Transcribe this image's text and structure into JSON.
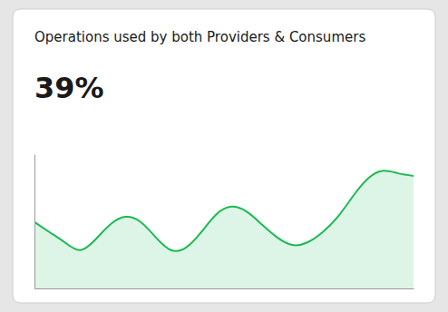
{
  "chart_data": {
    "type": "area",
    "title": "Operations used by both Providers & Consumers",
    "annotations": [
      "39%"
    ],
    "x": [
      0.0,
      0.04,
      0.08,
      0.12,
      0.16,
      0.2,
      0.24,
      0.28,
      0.32,
      0.36,
      0.4,
      0.44,
      0.48,
      0.52,
      0.56,
      0.6,
      0.64,
      0.68,
      0.72,
      0.76,
      0.8,
      0.84,
      0.88,
      0.92,
      0.96,
      1.0
    ],
    "values": [
      0.52,
      0.44,
      0.36,
      0.3,
      0.38,
      0.5,
      0.56,
      0.52,
      0.4,
      0.3,
      0.32,
      0.44,
      0.58,
      0.64,
      0.6,
      0.5,
      0.4,
      0.34,
      0.36,
      0.44,
      0.56,
      0.72,
      0.86,
      0.92,
      0.9,
      0.88
    ],
    "color": "#1db954",
    "xlim": [
      0,
      1
    ],
    "ylim": [
      0,
      1.05
    ],
    "tick_labels": false,
    "grid": false
  }
}
